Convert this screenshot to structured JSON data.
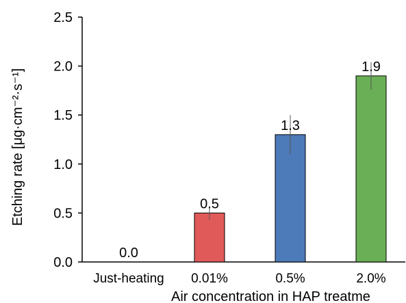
{
  "chart_data": {
    "type": "bar",
    "categories": [
      "Just-heating",
      "0.01%",
      "0.5%",
      "2.0%"
    ],
    "values": [
      0.0,
      0.5,
      1.3,
      1.9
    ],
    "data_labels": [
      "0.0",
      "0.5",
      "1.3",
      "1.9"
    ],
    "error_bars": [
      0.0,
      0.07,
      0.2,
      0.14
    ],
    "bar_colors": [
      "#e05a5a",
      "#e05a5a",
      "#4d7ab8",
      "#6aaf55"
    ],
    "title": "",
    "xlabel": "Air concentration in HAP treatme",
    "ylabel": "Etching rate [μg·cm⁻²·s⁻¹]",
    "ylim": [
      0,
      2.5
    ],
    "yticks": [
      "0.0",
      "0.5",
      "1.0",
      "1.5",
      "2.0",
      "2.5"
    ],
    "grid": false,
    "legend": "none"
  }
}
